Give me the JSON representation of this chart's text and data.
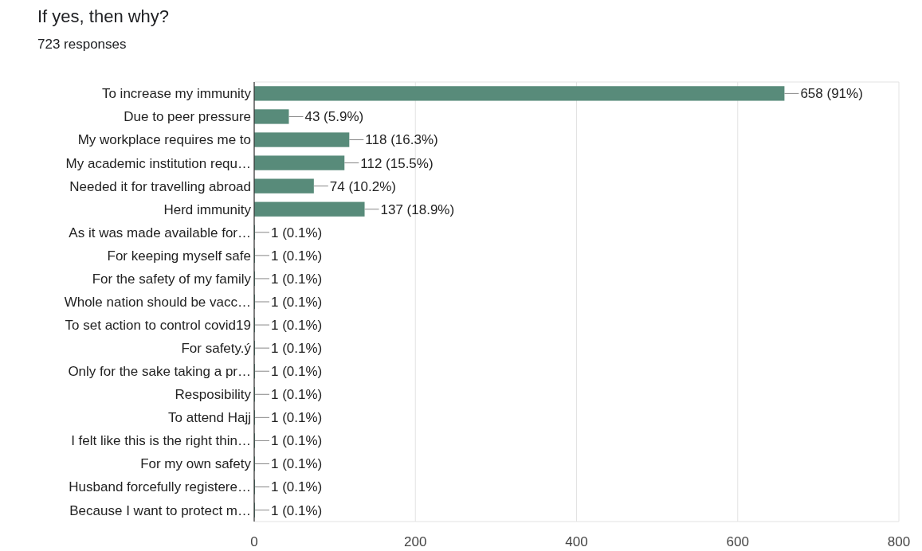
{
  "chart_data": {
    "type": "bar",
    "orientation": "horizontal",
    "title": "If yes, then why?",
    "subtitle": "723 responses",
    "categories": [
      "To increase my immunity",
      "Due to peer pressure",
      "My workplace requires me to",
      "My academic institution requ…",
      "Needed it for travelling abroad",
      "Herd immunity",
      "As it was made available for…",
      "For keeping myself safe",
      "For the safety of my family",
      "Whole nation should be vacc…",
      "To set action to control covid19",
      "For safety.ý",
      "Only for the sake taking a pr…",
      "Resposibility",
      "To attend Hajj",
      "I felt like this is the right thin…",
      "For my own safety",
      "Husband forcefully registere…",
      "Because I want to protect m…"
    ],
    "values": [
      658,
      43,
      118,
      112,
      74,
      137,
      1,
      1,
      1,
      1,
      1,
      1,
      1,
      1,
      1,
      1,
      1,
      1,
      1
    ],
    "value_labels": [
      "658 (91%)",
      "43 (5.9%)",
      "118 (16.3%)",
      "112 (15.5%)",
      "74 (10.2%)",
      "137 (18.9%)",
      "1 (0.1%)",
      "1 (0.1%)",
      "1 (0.1%)",
      "1 (0.1%)",
      "1 (0.1%)",
      "1 (0.1%)",
      "1 (0.1%)",
      "1 (0.1%)",
      "1 (0.1%)",
      "1 (0.1%)",
      "1 (0.1%)",
      "1 (0.1%)",
      "1 (0.1%)"
    ],
    "color": "#588b7a",
    "xlim": [
      0,
      800
    ],
    "xticks": [
      0,
      200,
      400,
      600,
      800
    ],
    "grid": "x"
  }
}
